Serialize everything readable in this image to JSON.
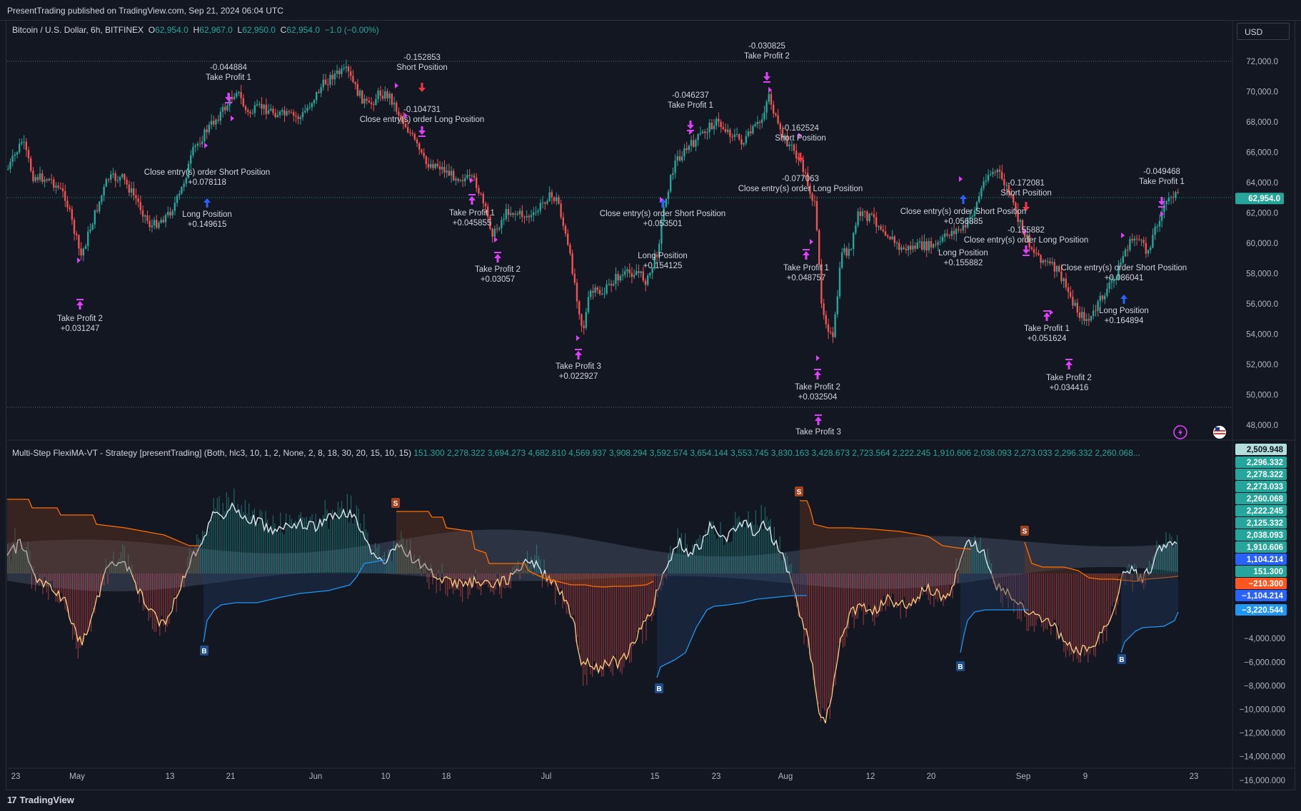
{
  "header": {
    "published_text": "PresentTrading published on TradingView.com, Sep 21, 2024 06:04 UTC"
  },
  "symbol_legend": {
    "symbol": "Bitcoin / U.S. Dollar, 6h, BITFINEX",
    "open_label": "O",
    "open": "62,954.0",
    "high_label": "H",
    "high": "62,967.0",
    "low_label": "L",
    "low": "62,950.0",
    "close_label": "C",
    "close": "62,954.0",
    "change": "−1.0 (−0.00%)"
  },
  "currency_button": "USD",
  "indicator_legend": {
    "name": "Multi-Step FlexiMA-VT - Strategy [presentTrading] (Both, hlc3, 10, 1, 2, None, 2, 8, 18, 30, 20, 15, 10, 15)",
    "values": [
      "151.300",
      "2,278.322",
      "3,694.273",
      "4,682.810",
      "4,569.937",
      "3,908.294",
      "3,592.574",
      "3,654.144",
      "3,553.745",
      "3,830.163",
      "3,428.673",
      "2,723.564",
      "2,222.245",
      "1,910.606",
      "2,038.093",
      "2,273.033",
      "2,296.332",
      "2,260.068..."
    ]
  },
  "price_axis": {
    "labels": [
      "72,000.0",
      "70,000.0",
      "68,000.0",
      "66,000.0",
      "64,000.0",
      "62,000.0",
      "60,000.0",
      "58,000.0",
      "56,000.0",
      "54,000.0",
      "52,000.0",
      "50,000.0",
      "48,000.0"
    ],
    "current_price": "62,954.0",
    "current_price_color": "#26a69a"
  },
  "osc_axis": {
    "labels": [
      "−4,000.000",
      "−6,000.000",
      "−8,000.000",
      "−10,000.000",
      "−12,000.000",
      "−14,000.000",
      "−16,000.000"
    ],
    "badges": [
      {
        "text": "2,509.948",
        "bg": "#b2dfdb",
        "fg": "#131722"
      },
      {
        "text": "2,296.332",
        "bg": "#26a69a",
        "fg": "#ffffff"
      },
      {
        "text": "2,278.322",
        "bg": "#26a69a",
        "fg": "#ffffff"
      },
      {
        "text": "2,273.033",
        "bg": "#26a69a",
        "fg": "#ffffff"
      },
      {
        "text": "2,260.068",
        "bg": "#26a69a",
        "fg": "#ffffff"
      },
      {
        "text": "2,222.245",
        "bg": "#26a69a",
        "fg": "#ffffff"
      },
      {
        "text": "2,125.332",
        "bg": "#26a69a",
        "fg": "#ffffff"
      },
      {
        "text": "2,038.093",
        "bg": "#26a69a",
        "fg": "#ffffff"
      },
      {
        "text": "1,910.606",
        "bg": "#26a69a",
        "fg": "#ffffff"
      },
      {
        "text": "1,104.214",
        "bg": "#2962ff",
        "fg": "#ffffff"
      },
      {
        "text": "151.300",
        "bg": "#26a69a",
        "fg": "#ffffff"
      },
      {
        "text": "−210.300",
        "bg": "#ff5722",
        "fg": "#ffffff"
      },
      {
        "text": "−1,104.214",
        "bg": "#2962ff",
        "fg": "#ffffff"
      },
      {
        "text": "−3,220.544",
        "bg": "#2196f3",
        "fg": "#ffffff"
      }
    ]
  },
  "time_axis": {
    "labels": [
      "23",
      "May",
      "13",
      "21",
      "Jun",
      "10",
      "18",
      "Jul",
      "15",
      "23",
      "Aug",
      "12",
      "20",
      "Sep",
      "9",
      "23"
    ]
  },
  "signals": [
    {
      "l1": "Take Profit 2",
      "l2": "+0.031247"
    },
    {
      "l1": "-0.044884",
      "l2": "Take Profit 1"
    },
    {
      "l1": "Close entry(s) order Short Position",
      "l2": "+0.078118"
    },
    {
      "l1": "Long Position",
      "l2": "+0.149615"
    },
    {
      "l1": "-0.152853",
      "l2": "Short Position"
    },
    {
      "l1": "-0.104731",
      "l2": "Close entry(s) order Long Position"
    },
    {
      "l1": "Take Profit 1",
      "l2": "+0.045855"
    },
    {
      "l1": "Take Profit 2",
      "l2": "+0.03057"
    },
    {
      "l1": "Take Profit 3",
      "l2": "+0.022927"
    },
    {
      "l1": "-0.046237",
      "l2": "Take Profit 1"
    },
    {
      "l1": "Close entry(s) order Short Position",
      "l2": "+0.053501"
    },
    {
      "l1": "Long Position",
      "l2": "+0.154125"
    },
    {
      "l1": "-0.030825",
      "l2": "Take Profit 2"
    },
    {
      "l1": "-0.162524",
      "l2": "Short Position"
    },
    {
      "l1": "-0.077063",
      "l2": "Close entry(s) order Long Position"
    },
    {
      "l1": "Take Profit 1",
      "l2": "+0.048757"
    },
    {
      "l1": "Take Profit 2",
      "l2": "+0.032504"
    },
    {
      "l1": "Take Profit 3",
      "l2": ""
    },
    {
      "l1": "Close entry(s) order Short Position",
      "l2": "+0.056885"
    },
    {
      "l1": "-0.172081",
      "l2": "Short Position"
    },
    {
      "l1": "Long Position",
      "l2": "+0.155882"
    },
    {
      "l1": "-0.155882",
      "l2": "Close entry(s) order Long Position"
    },
    {
      "l1": "Take Profit 1",
      "l2": "+0.051624"
    },
    {
      "l1": "Take Profit 2",
      "l2": "+0.034416"
    },
    {
      "l1": "Close entry(s) order Short Position",
      "l2": "+0.086041"
    },
    {
      "l1": "Long Position",
      "l2": "+0.164894"
    },
    {
      "l1": "-0.049468",
      "l2": "Take Profit 1"
    }
  ],
  "markers": [
    {
      "letter": "S",
      "color": "#a0411f"
    },
    {
      "letter": "S",
      "color": "#a0411f"
    },
    {
      "letter": "S",
      "color": "#a0411f"
    },
    {
      "letter": "B",
      "color": "#1e4f8c"
    },
    {
      "letter": "B",
      "color": "#1e4f8c"
    },
    {
      "letter": "B",
      "color": "#1e4f8c"
    },
    {
      "letter": "B",
      "color": "#1e4f8c"
    }
  ],
  "colors": {
    "up": "#26a69a",
    "down": "#ef5350",
    "tp_marker": "#e040fb",
    "long_arrow": "#2962ff",
    "short_arrow": "#f23645"
  },
  "icons": [
    "lightning-icon",
    "us-flag-icon"
  ],
  "footer": {
    "logo_mark": "17",
    "logo_text": "TradingView"
  }
}
